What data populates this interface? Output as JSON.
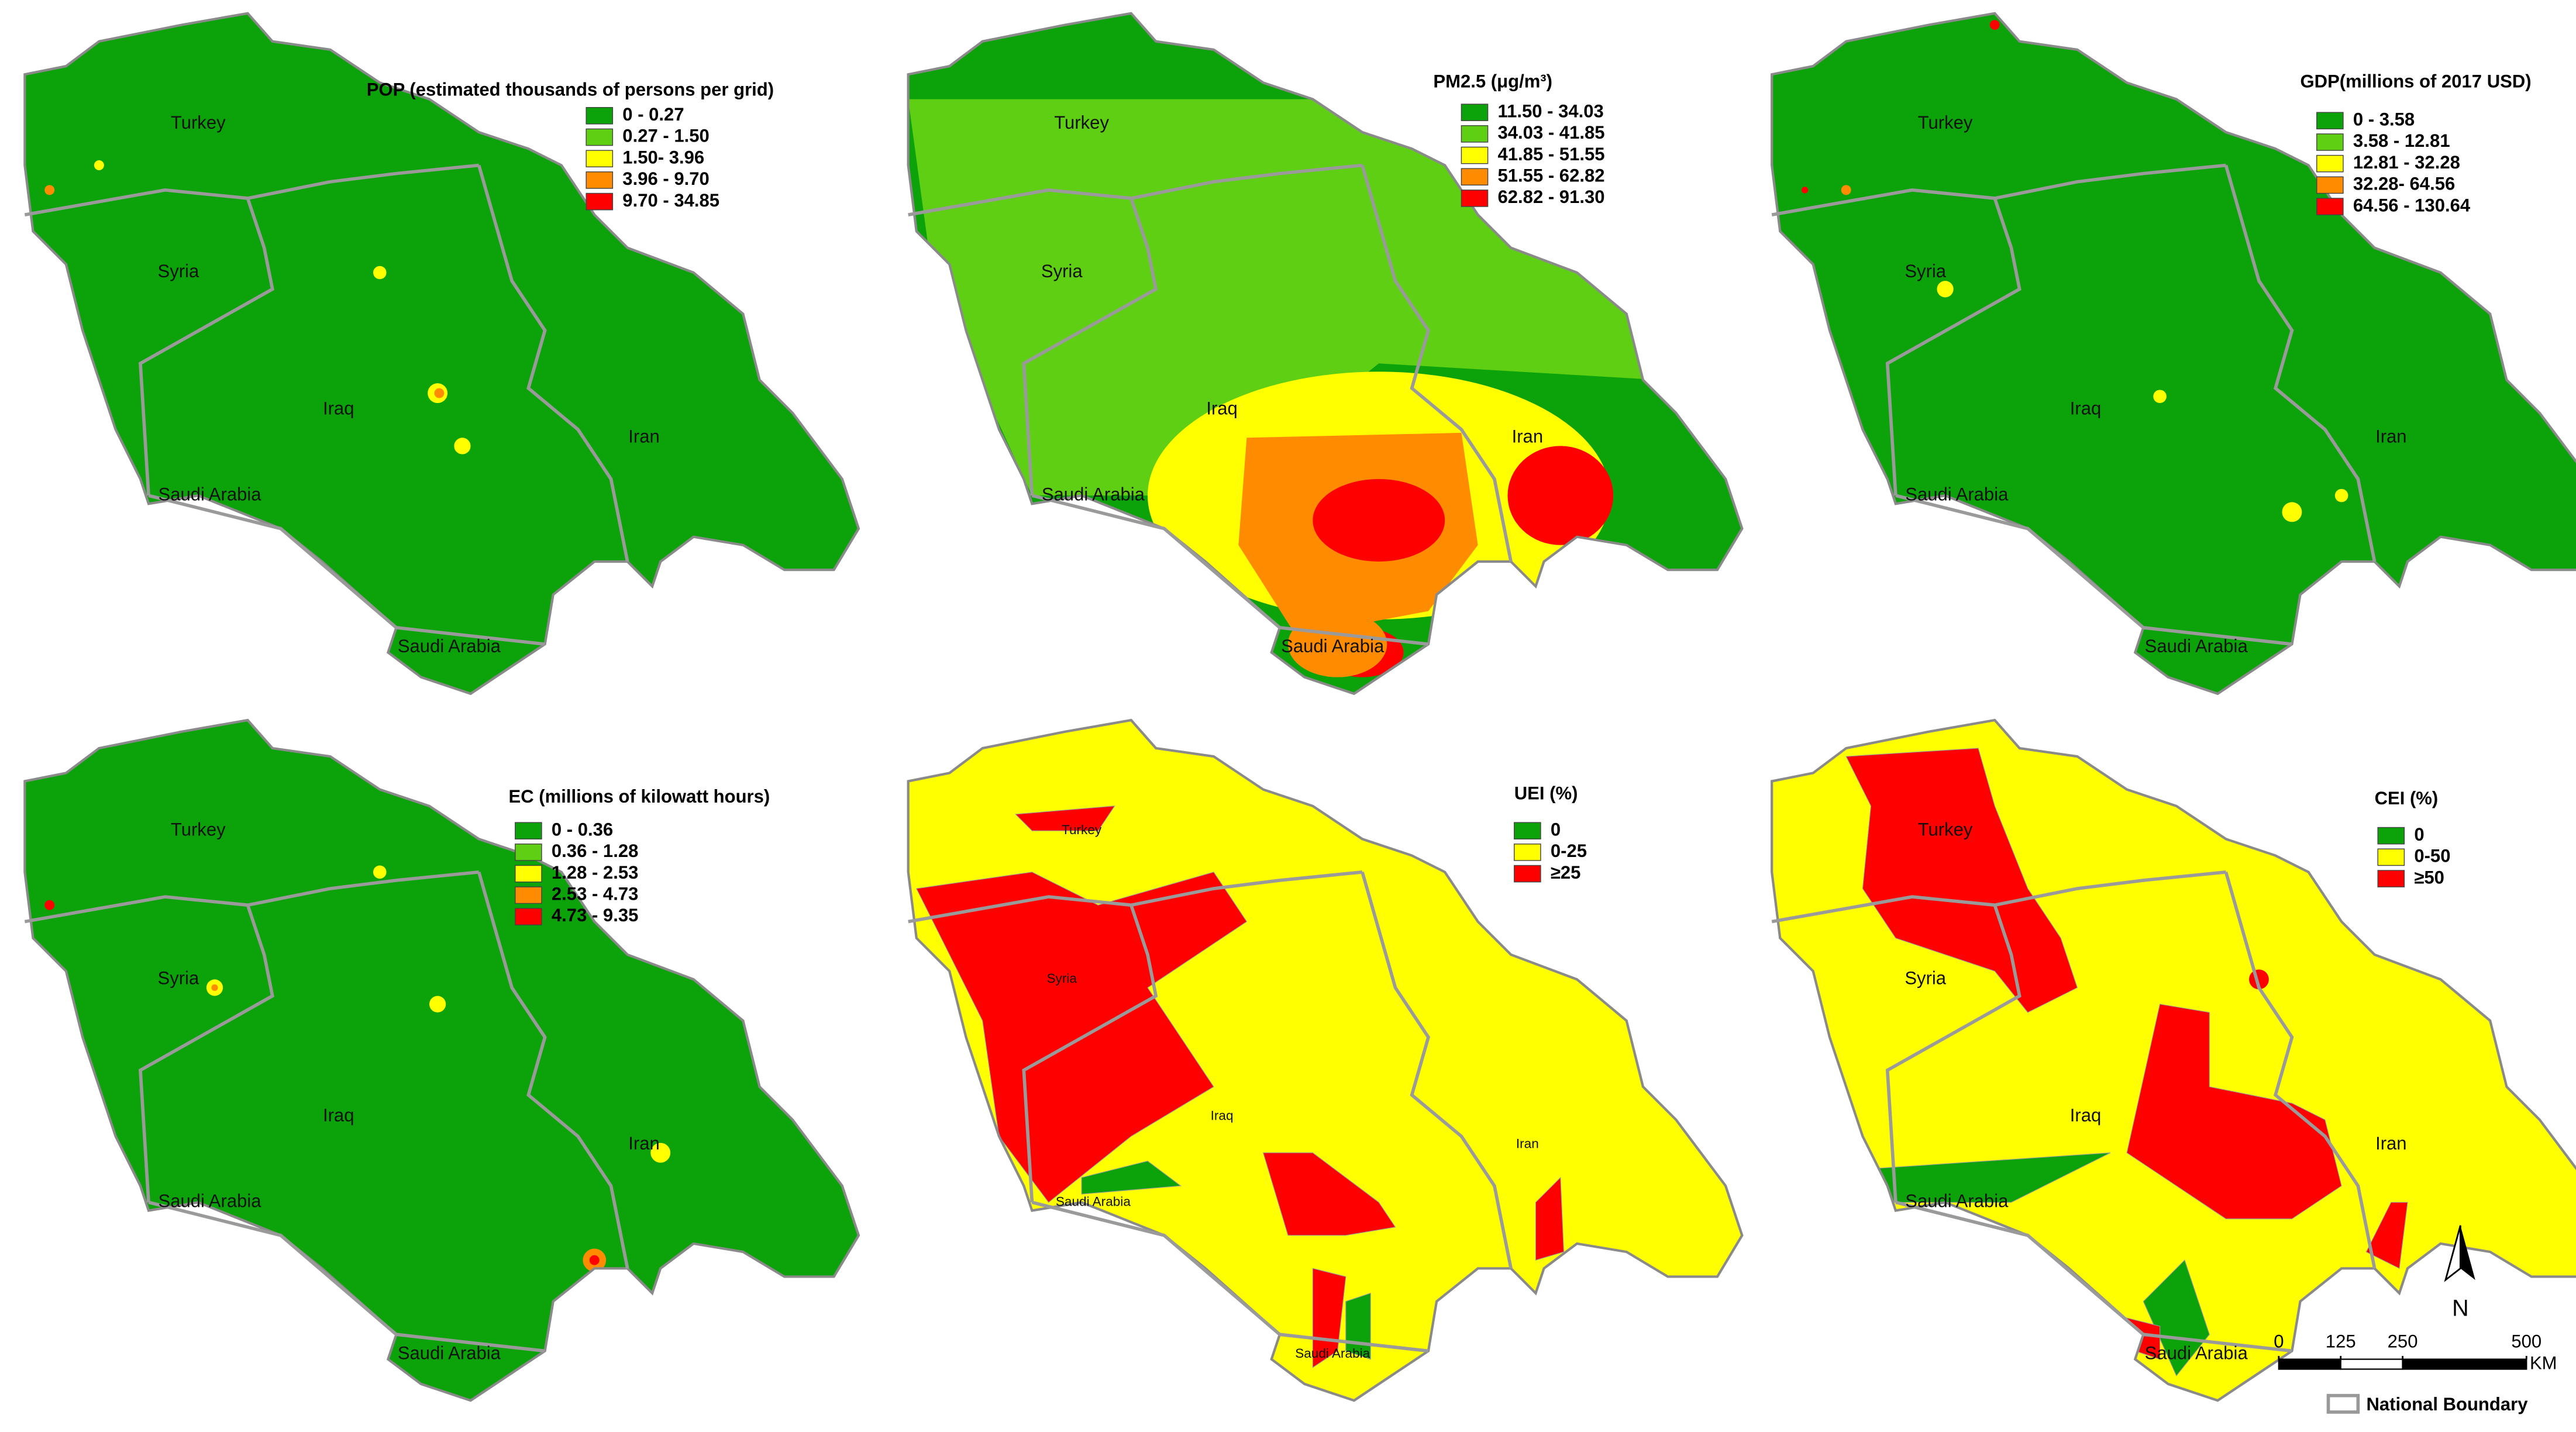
{
  "panels": [
    {
      "title": "POP (estimated thousands of persons per grid)",
      "legend": [
        {
          "label": "0 - 0.27",
          "color": "#0ca30a"
        },
        {
          "label": "0.27 - 1.50",
          "color": "#5fcf14"
        },
        {
          "label": "1.50- 3.96",
          "color": "#ffff00"
        },
        {
          "label": "3.96 - 9.70",
          "color": "#ff8c00"
        },
        {
          "label": "9.70 - 34.85",
          "color": "#ff0000"
        }
      ],
      "country_labels": [
        "Turkey",
        "Syria",
        "Iraq",
        "Iran",
        "Saudi Arabia",
        "Saudi Arabia"
      ]
    },
    {
      "title": "PM2.5 (μg/m³)",
      "legend": [
        {
          "label": "11.50 - 34.03",
          "color": "#0ca30a"
        },
        {
          "label": "34.03 - 41.85",
          "color": "#5fcf14"
        },
        {
          "label": "41.85 - 51.55",
          "color": "#ffff00"
        },
        {
          "label": "51.55 - 62.82",
          "color": "#ff8c00"
        },
        {
          "label": "62.82 - 91.30",
          "color": "#ff0000"
        }
      ],
      "country_labels": [
        "Turkey",
        "Syria",
        "Iraq",
        "Iran",
        "Saudi Arabia",
        "Saudi Arabia"
      ]
    },
    {
      "title": "GDP(millions of 2017 USD)",
      "legend": [
        {
          "label": "0 - 3.58",
          "color": "#0ca30a"
        },
        {
          "label": "3.58 - 12.81",
          "color": "#5fcf14"
        },
        {
          "label": "12.81 - 32.28",
          "color": "#ffff00"
        },
        {
          "label": "32.28- 64.56",
          "color": "#ff8c00"
        },
        {
          "label": "64.56 - 130.64",
          "color": "#ff0000"
        }
      ],
      "country_labels": [
        "Turkey",
        "Syria",
        "Iraq",
        "Iran",
        "Saudi Arabia",
        "Saudi Arabia"
      ]
    },
    {
      "title": "EC (millions of  kilowatt hours)",
      "legend": [
        {
          "label": "0 - 0.36",
          "color": "#0ca30a"
        },
        {
          "label": "0.36 - 1.28",
          "color": "#5fcf14"
        },
        {
          "label": "1.28 - 2.53",
          "color": "#ffff00"
        },
        {
          "label": "2.53 - 4.73",
          "color": "#ff8c00"
        },
        {
          "label": "4.73 - 9.35",
          "color": "#ff0000"
        }
      ],
      "country_labels": [
        "Turkey",
        "Syria",
        "Iraq",
        "Iran",
        "Saudi Arabia",
        "Saudi Arabia"
      ]
    },
    {
      "title": "UEI (%)",
      "legend": [
        {
          "label": "0",
          "color": "#0ca30a"
        },
        {
          "label": "0-25",
          "color": "#ffff00"
        },
        {
          "label": "≥25",
          "color": "#ff0000"
        }
      ],
      "country_labels": [
        "Turkey",
        "Syria",
        "Iraq",
        "Iran",
        "Saudi Arabia",
        "Saudi Arabia"
      ]
    },
    {
      "title": "CEI (%)",
      "legend": [
        {
          "label": "0",
          "color": "#0ca30a"
        },
        {
          "label": "0-50",
          "color": "#ffff00"
        },
        {
          "label": "≥50",
          "color": "#ff0000"
        }
      ],
      "country_labels": [
        "Turkey",
        "Syria",
        "Iraq",
        "Iran",
        "Saudi Arabia",
        "Saudi Arabia"
      ]
    }
  ],
  "north_arrow": "N",
  "scale_bar": {
    "ticks": [
      0,
      125,
      250,
      500
    ],
    "unit": "KM"
  },
  "boundary_legend": "National Boundary"
}
